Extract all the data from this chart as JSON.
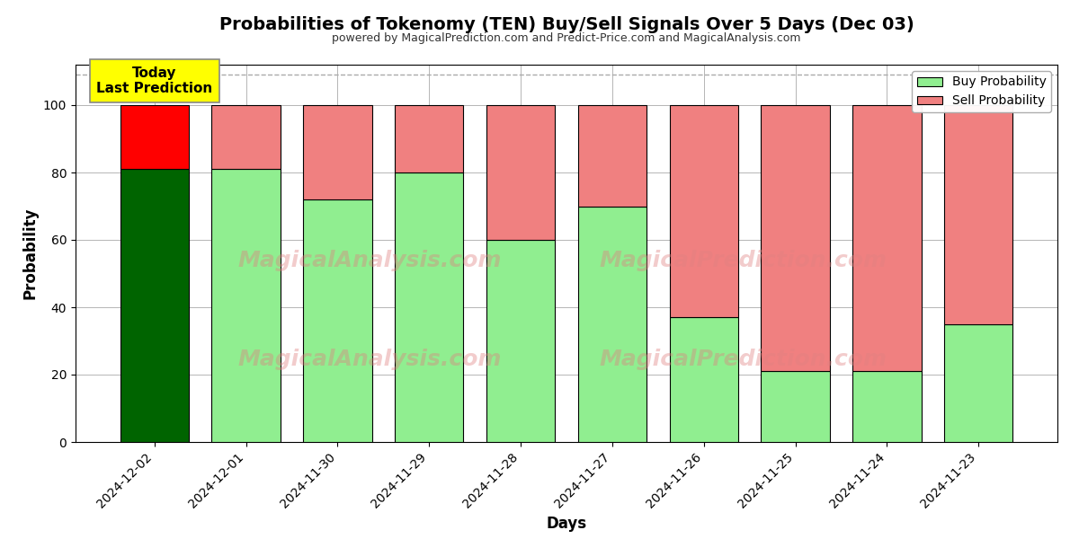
{
  "title": "Probabilities of Tokenomy (TEN) Buy/Sell Signals Over 5 Days (Dec 03)",
  "subtitle": "powered by MagicalPrediction.com and Predict-Price.com and MagicalAnalysis.com",
  "xlabel": "Days",
  "ylabel": "Probability",
  "dates": [
    "2024-12-02",
    "2024-12-01",
    "2024-11-30",
    "2024-11-29",
    "2024-11-28",
    "2024-11-27",
    "2024-11-26",
    "2024-11-25",
    "2024-11-24",
    "2024-11-23"
  ],
  "buy_probs": [
    81,
    81,
    72,
    80,
    60,
    70,
    37,
    21,
    21,
    35
  ],
  "sell_probs": [
    19,
    19,
    28,
    20,
    40,
    30,
    63,
    79,
    79,
    65
  ],
  "buy_colors": [
    "#006400",
    "#90EE90",
    "#90EE90",
    "#90EE90",
    "#90EE90",
    "#90EE90",
    "#90EE90",
    "#90EE90",
    "#90EE90",
    "#90EE90"
  ],
  "sell_colors": [
    "#FF0000",
    "#F08080",
    "#F08080",
    "#F08080",
    "#F08080",
    "#F08080",
    "#F08080",
    "#F08080",
    "#F08080",
    "#F08080"
  ],
  "today_label": "Today\nLast Prediction",
  "legend_buy_color": "#90EE90",
  "legend_sell_color": "#F08080",
  "ylim": [
    0,
    112
  ],
  "dashed_line_y": 109,
  "watermark1": "MagicalAnalysis.com",
  "watermark2": "MagicalPrediction.com",
  "bar_edgecolor": "#000000",
  "bar_linewidth": 0.8,
  "background_color": "#ffffff",
  "grid_color": "#aaaaaa",
  "bar_width": 0.75
}
